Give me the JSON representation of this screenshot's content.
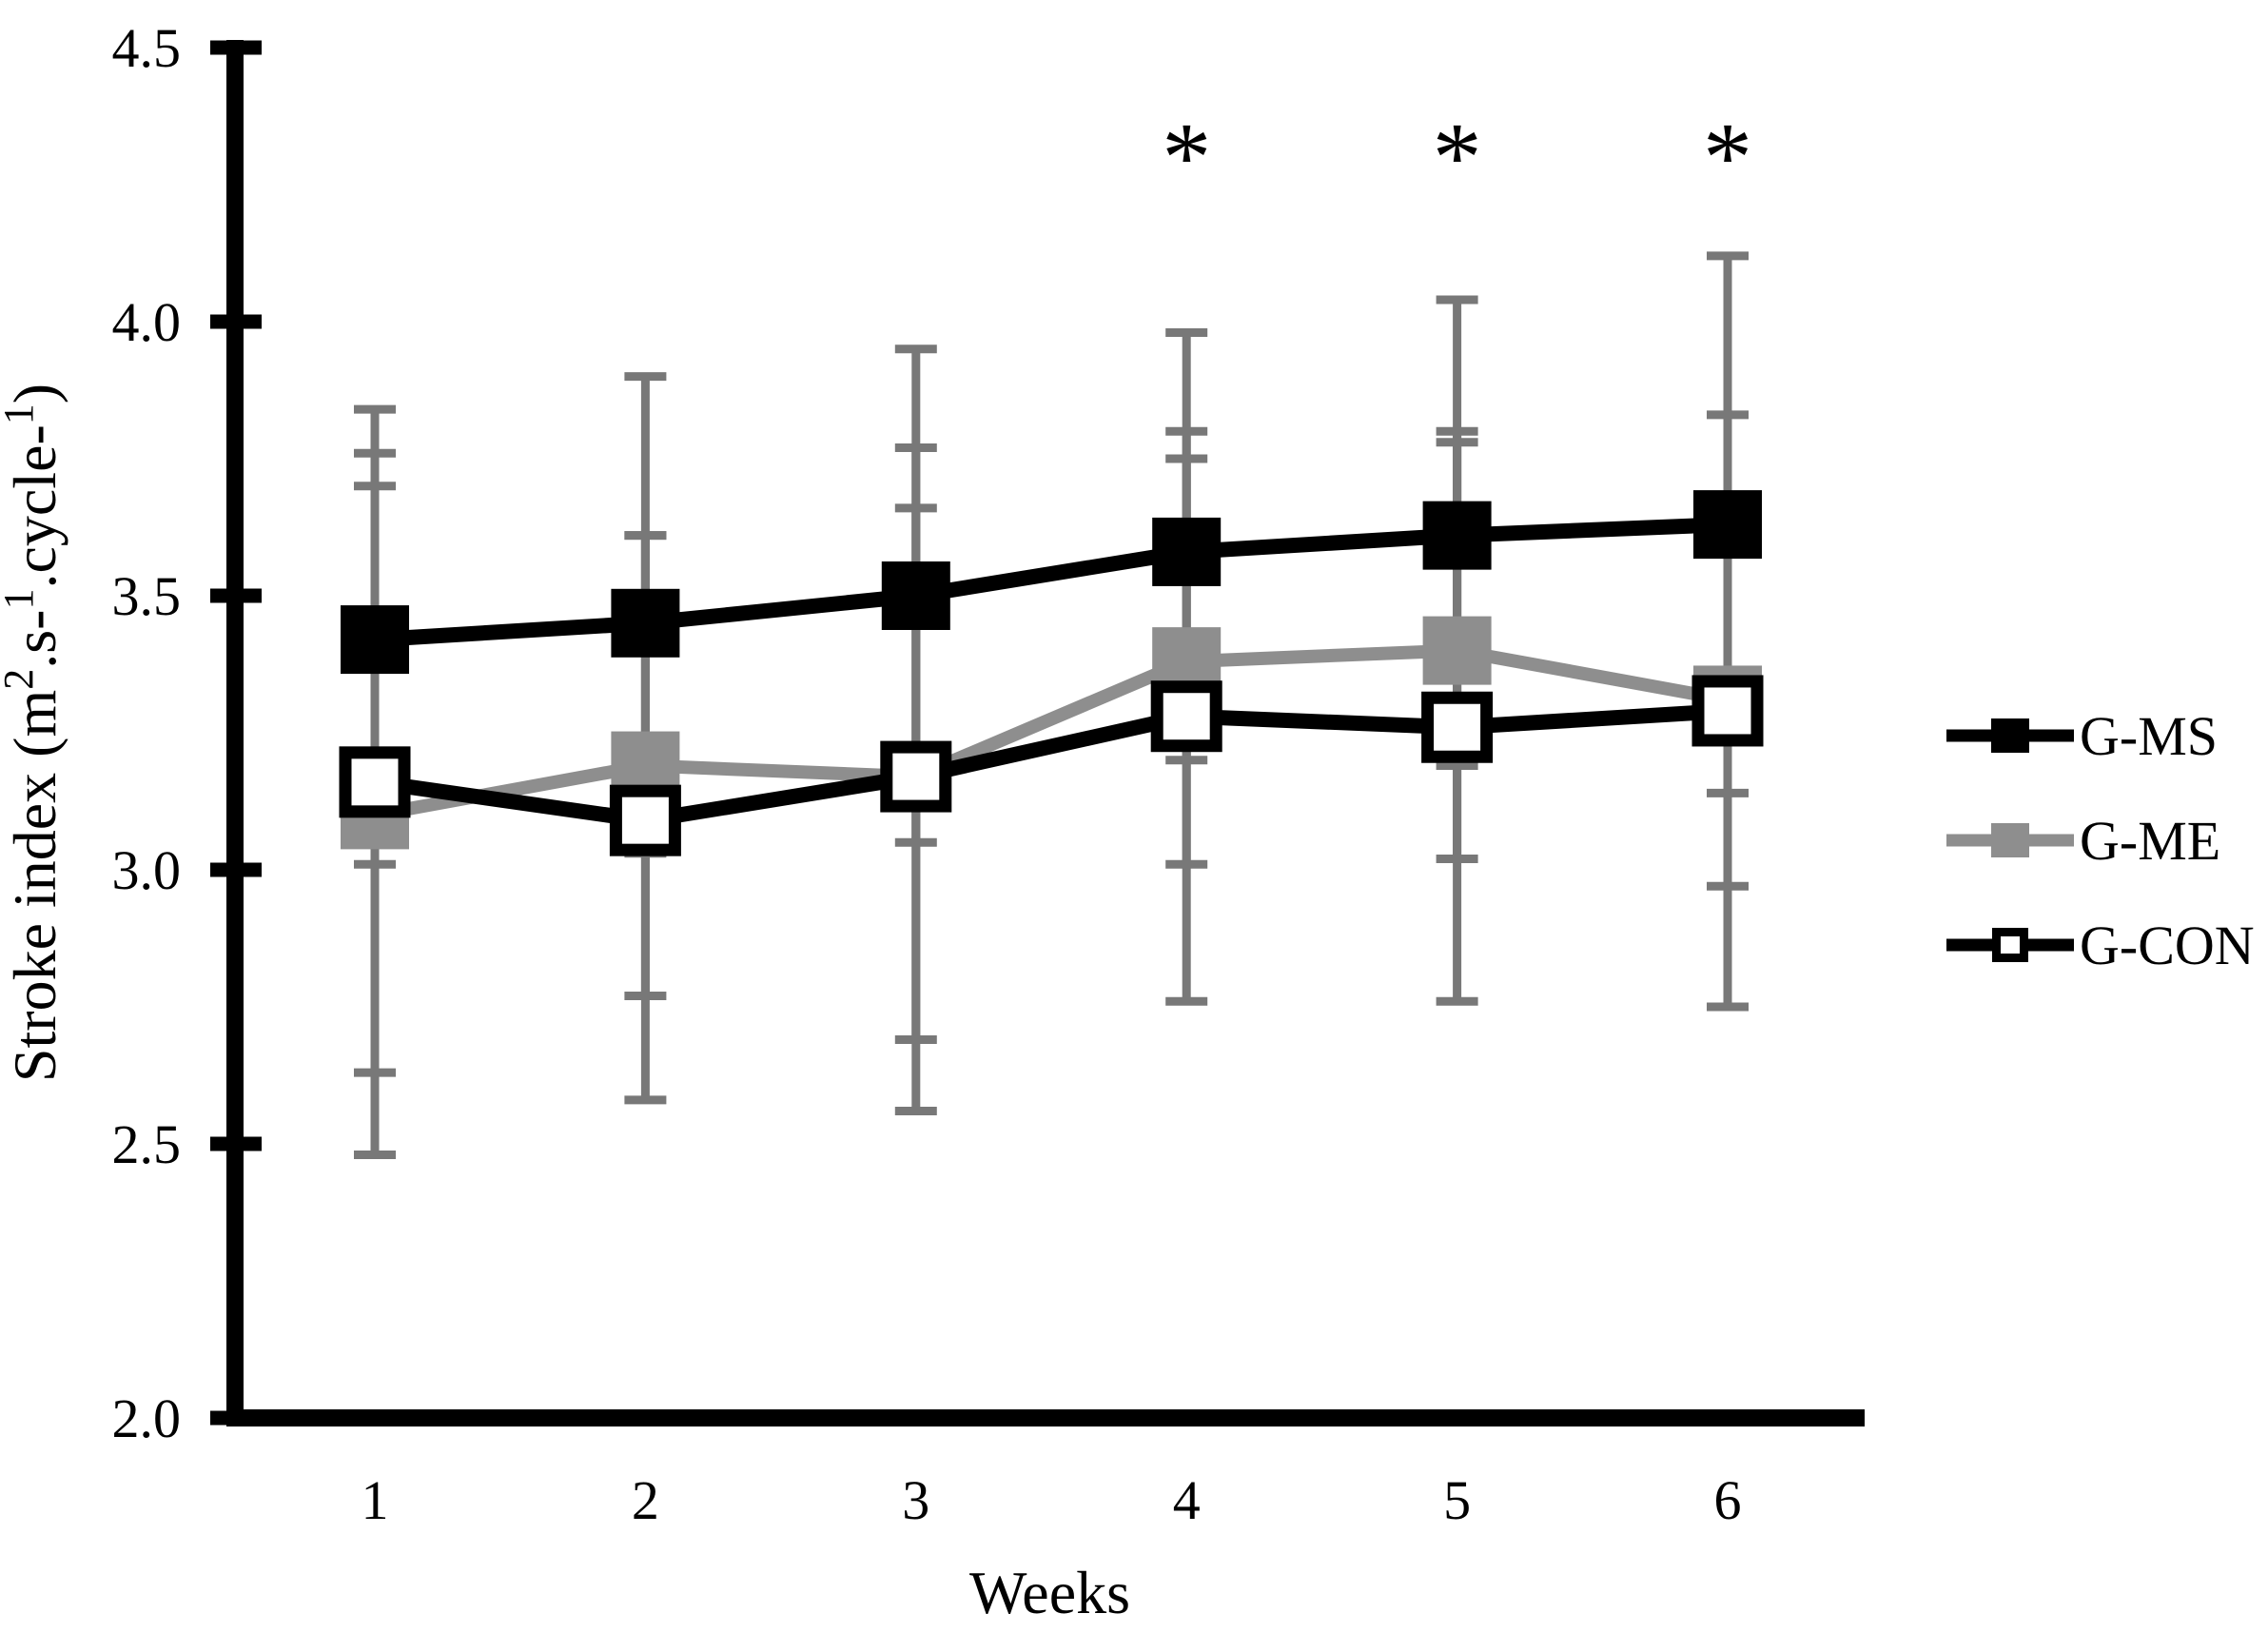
{
  "figure": {
    "background": "#ffffff",
    "text_color": "#000000"
  },
  "chart_data": {
    "type": "line",
    "title": "",
    "xlabel": "Weeks",
    "ylabel": "Stroke index (m2.s-1.cycle-1)",
    "ylabel_parts": [
      {
        "t": "Stroke index (m",
        "sup": false
      },
      {
        "t": "2",
        "sup": true
      },
      {
        "t": ".s-",
        "sup": false
      },
      {
        "t": "1",
        "sup": true
      },
      {
        "t": ".cycle-",
        "sup": false
      },
      {
        "t": "1",
        "sup": true
      },
      {
        "t": ")",
        "sup": false
      }
    ],
    "categories": [
      "1",
      "2",
      "3",
      "4",
      "5",
      "6"
    ],
    "x_values": [
      1,
      2,
      3,
      4,
      5,
      6
    ],
    "ylim": [
      2.0,
      4.5
    ],
    "ytick_step": 0.5,
    "ytick_labels": [
      "2.0",
      "2.5",
      "3.0",
      "3.5",
      "4.0",
      "4.5"
    ],
    "grid": false,
    "legend_position": "right",
    "significance_symbol": "*",
    "significant_weeks": [
      4,
      5,
      6
    ],
    "colors": {
      "axis": "#000000",
      "g_ms": "#000000",
      "g_me": "#8e8e8e",
      "g_con_line": "#000000",
      "g_con_fill": "#ffffff",
      "error_bar": "#787878"
    },
    "series": [
      {
        "name": "G-MS",
        "line_color": "#000000",
        "marker": "filled-square",
        "marker_color": "#000000",
        "values": [
          3.42,
          3.45,
          3.5,
          3.58,
          3.61,
          3.63
        ],
        "error_upper": [
          3.84,
          3.9,
          3.95,
          3.98,
          4.04,
          4.12
        ],
        "error_lower": [
          3.01,
          3.03,
          3.05,
          3.2,
          3.19,
          3.14
        ]
      },
      {
        "name": "G-ME",
        "line_color": "#8e8e8e",
        "marker": "filled-square",
        "marker_color": "#8e8e8e",
        "values": [
          3.1,
          3.19,
          3.17,
          3.38,
          3.4,
          3.31
        ],
        "error_upper": [
          3.76,
          3.61,
          3.66,
          3.8,
          3.8,
          3.65
        ],
        "error_lower": [
          2.48,
          2.77,
          2.69,
          3.01,
          3.02,
          2.97
        ]
      },
      {
        "name": "G-CON",
        "line_color": "#000000",
        "marker": "open-square",
        "marker_color": "#ffffff",
        "values": [
          3.16,
          3.09,
          3.17,
          3.28,
          3.26,
          3.29
        ],
        "error_upper": [
          3.7,
          3.61,
          3.77,
          3.75,
          3.78,
          3.83
        ],
        "error_lower": [
          2.63,
          2.58,
          2.56,
          2.76,
          2.76,
          2.75
        ]
      }
    ]
  }
}
